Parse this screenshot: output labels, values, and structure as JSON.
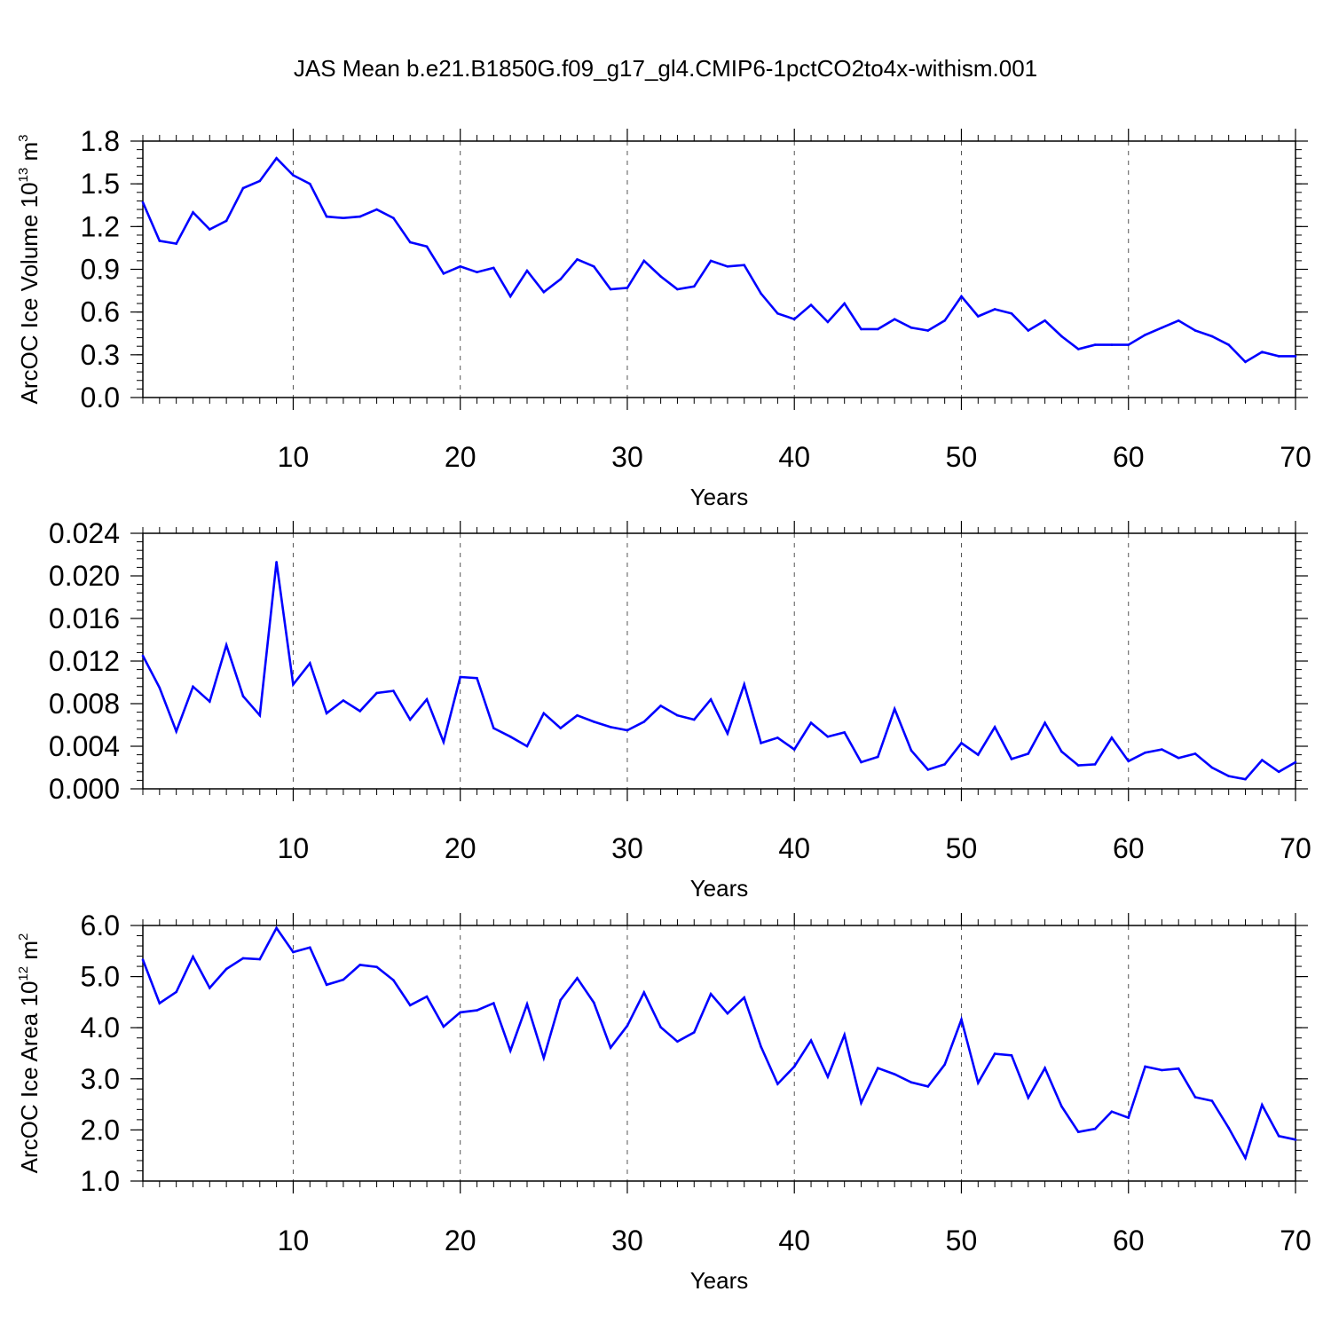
{
  "title": "JAS Mean b.e21.B1850G.f09_g17_gl4.CMIP6-1pctCO2to4x-withism.001",
  "colors": {
    "series": "#0000ff",
    "axis": "#000000",
    "grid": "#555555"
  },
  "chart_data": [
    {
      "type": "line",
      "title": "",
      "xlabel": "Years",
      "ylabel": "ArcOC Ice Volume 10",
      "ylabel_exp": "13",
      "ylabel_unit": " m",
      "ylabel_unit_exp": "3",
      "xlim": [
        1,
        70
      ],
      "ylim": [
        0.0,
        1.8
      ],
      "xticks": [
        10,
        20,
        30,
        40,
        50,
        60,
        70
      ],
      "yticks": [
        0.0,
        0.3,
        0.6,
        0.9,
        1.2,
        1.5,
        1.8
      ],
      "ytick_labels": [
        "0.0",
        "0.3",
        "0.6",
        "0.9",
        "1.2",
        "1.5",
        "1.8"
      ],
      "ytick_minor": 0.06,
      "grid": "vertical-dashed",
      "x": [
        1,
        2,
        3,
        4,
        5,
        6,
        7,
        8,
        9,
        10,
        11,
        12,
        13,
        14,
        15,
        16,
        17,
        18,
        19,
        20,
        21,
        22,
        23,
        24,
        25,
        26,
        27,
        28,
        29,
        30,
        31,
        32,
        33,
        34,
        35,
        36,
        37,
        38,
        39,
        40,
        41,
        42,
        43,
        44,
        45,
        46,
        47,
        48,
        49,
        50,
        51,
        52,
        53,
        54,
        55,
        56,
        57,
        58,
        59,
        60,
        61,
        62,
        63,
        64,
        65,
        66,
        67,
        68,
        69,
        70
      ],
      "values": [
        1.37,
        1.1,
        1.08,
        1.3,
        1.18,
        1.24,
        1.47,
        1.52,
        1.68,
        1.56,
        1.5,
        1.27,
        1.26,
        1.27,
        1.32,
        1.26,
        1.09,
        1.06,
        0.87,
        0.92,
        0.88,
        0.91,
        0.71,
        0.89,
        0.74,
        0.83,
        0.97,
        0.92,
        0.76,
        0.77,
        0.96,
        0.85,
        0.76,
        0.78,
        0.96,
        0.92,
        0.93,
        0.73,
        0.59,
        0.55,
        0.65,
        0.53,
        0.66,
        0.48,
        0.48,
        0.55,
        0.49,
        0.47,
        0.54,
        0.71,
        0.57,
        0.62,
        0.59,
        0.47,
        0.54,
        0.43,
        0.34,
        0.37,
        0.37,
        0.37,
        0.44,
        0.49,
        0.54,
        0.47,
        0.43,
        0.37,
        0.25,
        0.32,
        0.29,
        0.29
      ]
    },
    {
      "type": "line",
      "title": "",
      "xlabel": "Years",
      "ylabel": "",
      "xlim": [
        1,
        70
      ],
      "ylim": [
        0.0,
        0.024
      ],
      "xticks": [
        10,
        20,
        30,
        40,
        50,
        60,
        70
      ],
      "yticks": [
        0.0,
        0.004,
        0.008,
        0.012,
        0.016,
        0.02,
        0.024
      ],
      "ytick_labels": [
        "0.000",
        "0.004",
        "0.008",
        "0.012",
        "0.016",
        "0.020",
        "0.024"
      ],
      "ytick_minor": 0.0008,
      "grid": "vertical-dashed",
      "x": [
        1,
        2,
        3,
        4,
        5,
        6,
        7,
        8,
        9,
        10,
        11,
        12,
        13,
        14,
        15,
        16,
        17,
        18,
        19,
        20,
        21,
        22,
        23,
        24,
        25,
        26,
        27,
        28,
        29,
        30,
        31,
        32,
        33,
        34,
        35,
        36,
        37,
        38,
        39,
        40,
        41,
        42,
        43,
        44,
        45,
        46,
        47,
        48,
        49,
        50,
        51,
        52,
        53,
        54,
        55,
        56,
        57,
        58,
        59,
        60,
        61,
        62,
        63,
        64,
        65,
        66,
        67,
        68,
        69,
        70
      ],
      "values": [
        0.0125,
        0.0095,
        0.0054,
        0.0096,
        0.0082,
        0.0135,
        0.0087,
        0.0069,
        0.0213,
        0.0098,
        0.0118,
        0.0071,
        0.0083,
        0.0073,
        0.009,
        0.0092,
        0.0065,
        0.0084,
        0.0044,
        0.0105,
        0.0104,
        0.0057,
        0.0049,
        0.004,
        0.0071,
        0.0057,
        0.0069,
        0.0063,
        0.0058,
        0.0055,
        0.0063,
        0.0078,
        0.0069,
        0.0065,
        0.0084,
        0.0052,
        0.0098,
        0.0043,
        0.0048,
        0.0037,
        0.0062,
        0.0049,
        0.0053,
        0.0025,
        0.003,
        0.0075,
        0.0036,
        0.0018,
        0.0023,
        0.0043,
        0.0032,
        0.0058,
        0.0028,
        0.0033,
        0.0062,
        0.0035,
        0.0022,
        0.0023,
        0.0048,
        0.0026,
        0.0034,
        0.0037,
        0.0029,
        0.0033,
        0.002,
        0.0012,
        0.0009,
        0.0027,
        0.0016,
        0.0025
      ]
    },
    {
      "type": "line",
      "title": "",
      "xlabel": "Years",
      "ylabel": "ArcOC Ice Area 10",
      "ylabel_exp": "12",
      "ylabel_unit": " m",
      "ylabel_unit_exp": "2",
      "xlim": [
        1,
        70
      ],
      "ylim": [
        1.0,
        6.0
      ],
      "xticks": [
        10,
        20,
        30,
        40,
        50,
        60,
        70
      ],
      "yticks": [
        1.0,
        2.0,
        3.0,
        4.0,
        5.0,
        6.0
      ],
      "ytick_labels": [
        "1.0",
        "2.0",
        "3.0",
        "4.0",
        "5.0",
        "6.0"
      ],
      "ytick_minor": 0.2,
      "grid": "vertical-dashed",
      "x": [
        1,
        2,
        3,
        4,
        5,
        6,
        7,
        8,
        9,
        10,
        11,
        12,
        13,
        14,
        15,
        16,
        17,
        18,
        19,
        20,
        21,
        22,
        23,
        24,
        25,
        26,
        27,
        28,
        29,
        30,
        31,
        32,
        33,
        34,
        35,
        36,
        37,
        38,
        39,
        40,
        41,
        42,
        43,
        44,
        45,
        46,
        47,
        48,
        49,
        50,
        51,
        52,
        53,
        54,
        55,
        56,
        57,
        58,
        59,
        60,
        61,
        62,
        63,
        64,
        65,
        66,
        67,
        68,
        69,
        70
      ],
      "values": [
        5.33,
        4.48,
        4.7,
        5.39,
        4.78,
        5.15,
        5.36,
        5.34,
        5.95,
        5.48,
        5.57,
        4.84,
        4.94,
        5.23,
        5.19,
        4.93,
        4.44,
        4.61,
        4.02,
        4.3,
        4.34,
        4.48,
        3.55,
        4.46,
        3.41,
        4.54,
        4.97,
        4.49,
        3.61,
        4.04,
        4.69,
        4.01,
        3.73,
        3.91,
        4.66,
        4.28,
        4.59,
        3.63,
        2.9,
        3.24,
        3.75,
        3.04,
        3.86,
        2.53,
        3.21,
        3.09,
        2.93,
        2.85,
        3.28,
        4.16,
        2.92,
        3.49,
        3.46,
        2.63,
        3.21,
        2.46,
        1.96,
        2.02,
        2.36,
        2.24,
        3.24,
        3.17,
        3.2,
        2.64,
        2.57,
        2.04,
        1.45,
        2.49,
        1.88,
        1.81
      ]
    }
  ]
}
